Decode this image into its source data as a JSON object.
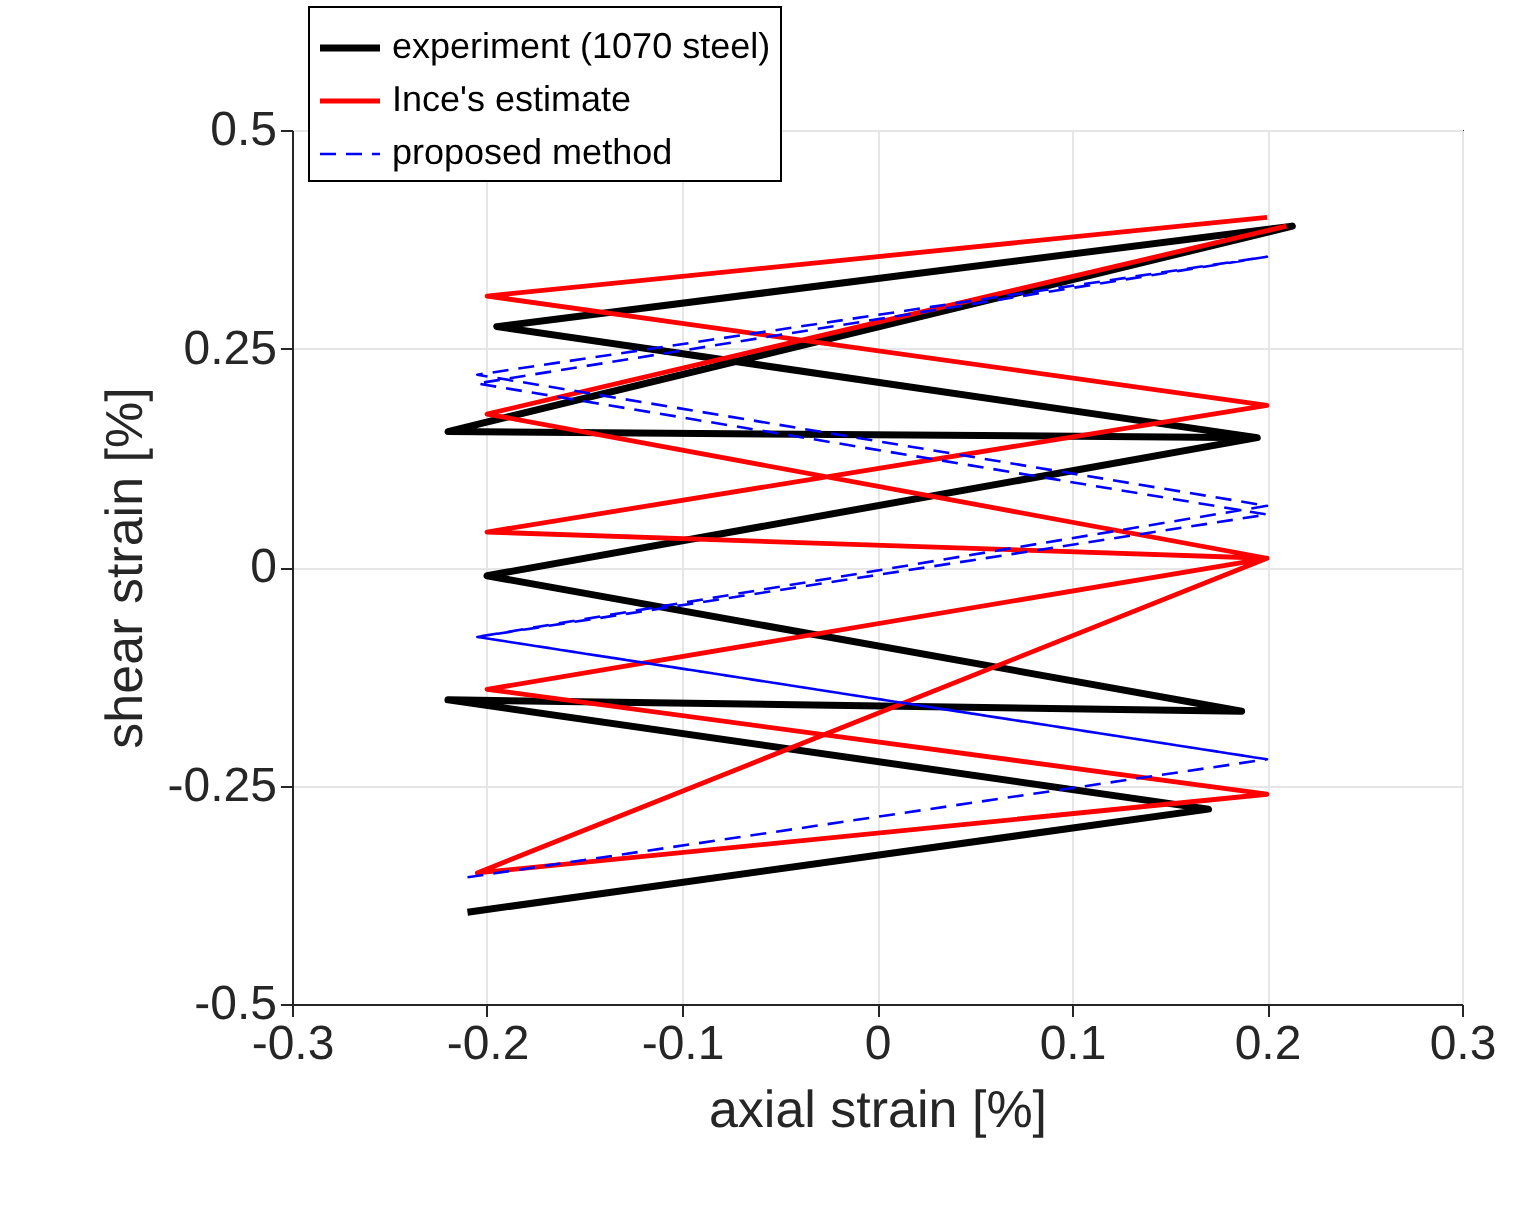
{
  "chart_data": {
    "type": "line",
    "xlabel": "axial strain [%]",
    "ylabel": "shear strain [%]",
    "xlim": [
      -0.3,
      0.3
    ],
    "xticks": [
      -0.3,
      -0.2,
      -0.1,
      0,
      0.1,
      0.2,
      0.3
    ],
    "ylim": [
      -0.5,
      0.5
    ],
    "yticks": [
      -0.5,
      -0.25,
      0,
      0.25,
      0.5
    ],
    "grid": true,
    "legend": "top left",
    "marker": "none",
    "series": [
      {
        "name": "experiment (1070 steel)",
        "color": "#000000",
        "line_style": "solid",
        "x": [
          -0.21,
          0.17,
          -0.22,
          0.187,
          -0.2,
          0.195,
          -0.22,
          0.213,
          -0.195,
          0.195
        ],
        "values": [
          -0.395,
          -0.277,
          -0.152,
          -0.165,
          -0.01,
          0.148,
          0.155,
          0.39,
          0.275,
          0.148
        ]
      },
      {
        "name": "Ince's estimate",
        "color": "#ff0000",
        "line_style": "solid",
        "x": [
          0.2,
          -0.2,
          0.2,
          -0.2,
          0.2,
          -0.2,
          0.2,
          -0.205,
          0.2,
          -0.2,
          0.21
        ],
        "values": [
          0.4,
          0.31,
          0.185,
          0.04,
          0.01,
          -0.14,
          -0.26,
          -0.35,
          0.01,
          0.175,
          0.39
        ]
      },
      {
        "name": "proposed method",
        "color": "#0000ff",
        "line_style": "dashed",
        "x": [
          -0.21,
          0.2,
          -0.205,
          0.2,
          -0.205,
          0.2,
          -0.205,
          0.2,
          -0.205,
          0.2
        ],
        "values": [
          -0.355,
          -0.22,
          -0.08,
          0.07,
          0.22,
          0.355,
          0.21,
          0.06,
          -0.08,
          -0.22
        ]
      }
    ]
  }
}
